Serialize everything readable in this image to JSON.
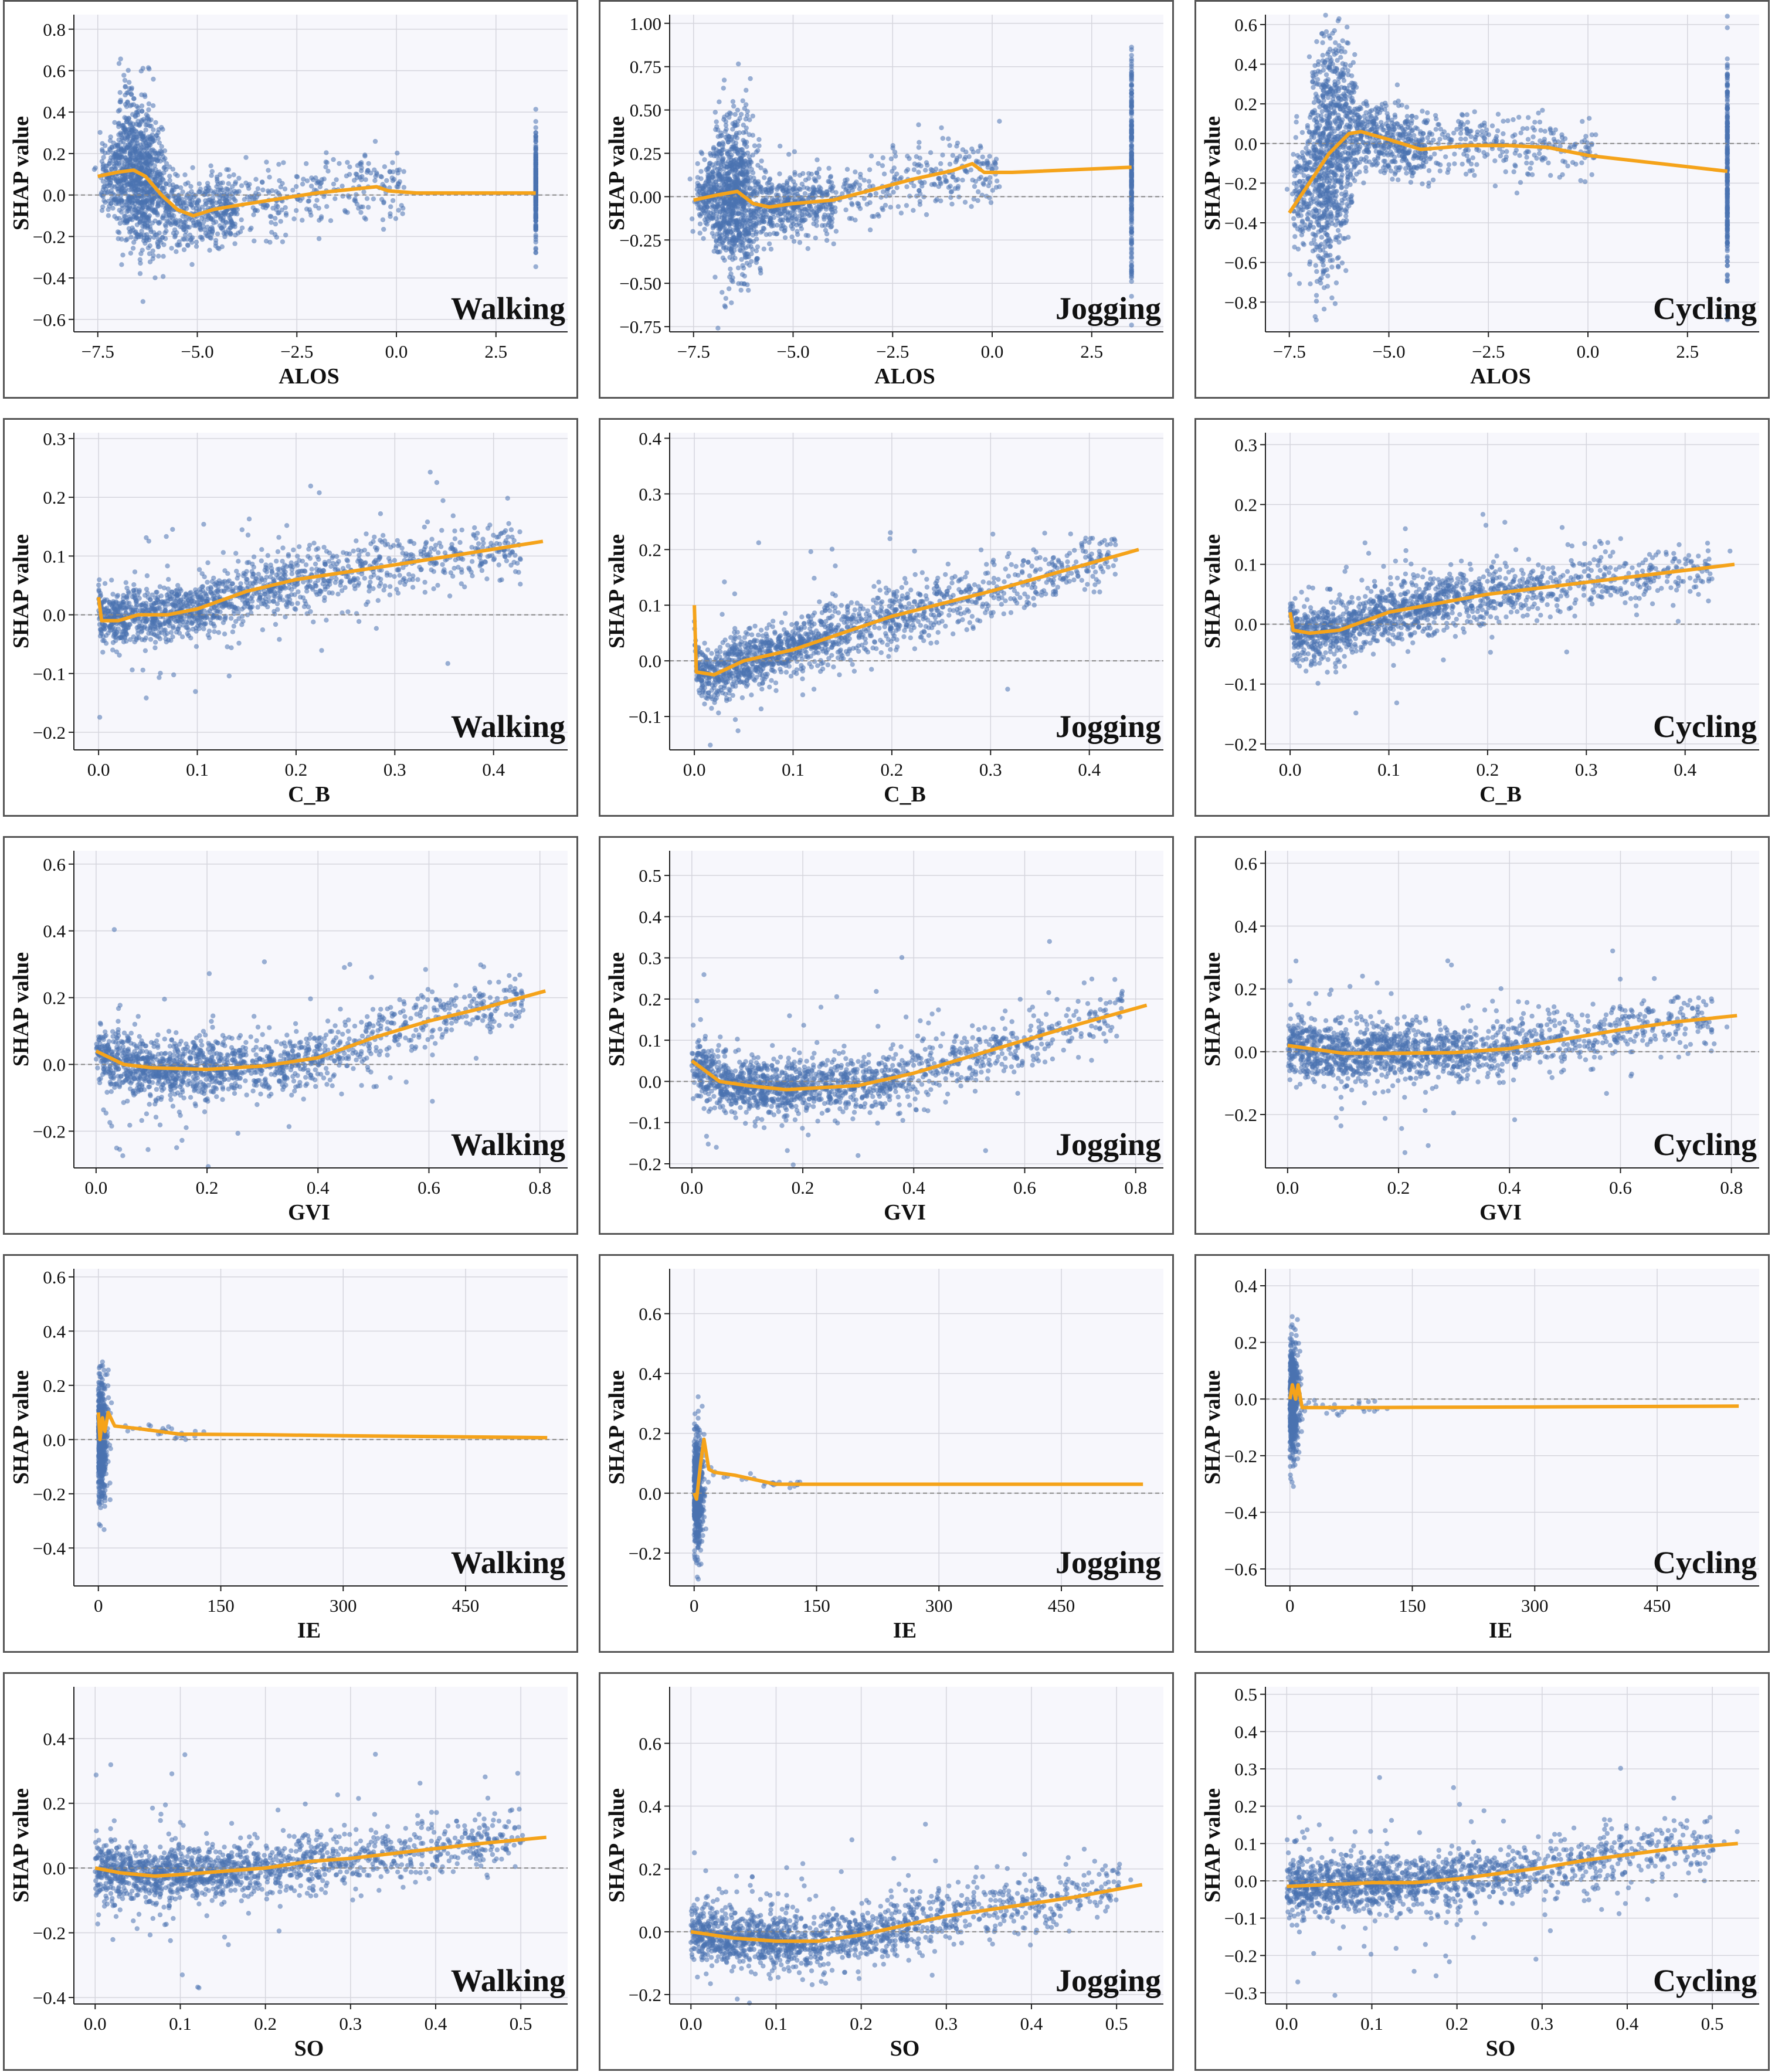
{
  "figure": {
    "colors": {
      "points": "#4b72b0",
      "lowess": "#f5a31a",
      "plot_bg": "#f7f7fc",
      "grid": "#d5d5dd",
      "zero_line": "#888888"
    }
  },
  "chart_data": [
    {
      "type": "scatter",
      "feature": "ALOS",
      "activity": "Walking",
      "xlabel": "ALOS",
      "ylabel": "SHAP value",
      "xlim": [
        -8.1,
        4.3
      ],
      "ylim": [
        -0.66,
        0.87
      ],
      "xticks": [
        -7.5,
        -5.0,
        -2.5,
        0.0,
        2.5
      ],
      "xtick_labels": [
        "−7.5",
        "−5.0",
        "−2.5",
        "0.0",
        "2.5"
      ],
      "yticks": [
        -0.6,
        -0.4,
        -0.2,
        0.0,
        0.2,
        0.4,
        0.6,
        0.8
      ],
      "ytick_labels": [
        "−0.6",
        "−0.4",
        "−0.2",
        "0.0",
        "0.2",
        "0.4",
        "0.6",
        "0.8"
      ],
      "lowess": [
        [
          -7.5,
          0.09
        ],
        [
          -7.0,
          0.11
        ],
        [
          -6.6,
          0.12
        ],
        [
          -6.3,
          0.09
        ],
        [
          -5.9,
          0.0
        ],
        [
          -5.5,
          -0.07
        ],
        [
          -5.1,
          -0.1
        ],
        [
          -4.6,
          -0.07
        ],
        [
          -4.0,
          -0.05
        ],
        [
          -3.0,
          -0.02
        ],
        [
          -2.0,
          0.01
        ],
        [
          -1.0,
          0.03
        ],
        [
          -0.5,
          0.04
        ],
        [
          -0.2,
          0.02
        ],
        [
          0.5,
          0.01
        ],
        [
          3.5,
          0.01
        ]
      ]
    },
    {
      "type": "scatter",
      "feature": "ALOS",
      "activity": "Jogging",
      "xlabel": "ALOS",
      "ylabel": "SHAP value",
      "xlim": [
        -8.1,
        4.3
      ],
      "ylim": [
        -0.78,
        1.05
      ],
      "xticks": [
        -7.5,
        -5.0,
        -2.5,
        0.0,
        2.5
      ],
      "xtick_labels": [
        "−7.5",
        "−5.0",
        "−2.5",
        "0.0",
        "2.5"
      ],
      "yticks": [
        -0.75,
        -0.5,
        -0.25,
        0.0,
        0.25,
        0.5,
        0.75,
        1.0
      ],
      "ytick_labels": [
        "−0.75",
        "−0.50",
        "−0.25",
        "0.00",
        "0.25",
        "0.50",
        "0.75",
        "1.00"
      ],
      "lowess": [
        [
          -7.5,
          -0.02
        ],
        [
          -6.9,
          0.01
        ],
        [
          -6.4,
          0.03
        ],
        [
          -6.0,
          -0.04
        ],
        [
          -5.6,
          -0.06
        ],
        [
          -5.0,
          -0.04
        ],
        [
          -4.0,
          -0.02
        ],
        [
          -3.0,
          0.04
        ],
        [
          -2.0,
          0.1
        ],
        [
          -1.0,
          0.15
        ],
        [
          -0.5,
          0.19
        ],
        [
          -0.2,
          0.14
        ],
        [
          0.5,
          0.14
        ],
        [
          3.5,
          0.17
        ]
      ]
    },
    {
      "type": "scatter",
      "feature": "ALOS",
      "activity": "Cycling",
      "xlabel": "ALOS",
      "ylabel": "SHAP value",
      "xlim": [
        -8.1,
        4.3
      ],
      "ylim": [
        -0.95,
        0.65
      ],
      "xticks": [
        -7.5,
        -5.0,
        -2.5,
        0.0,
        2.5
      ],
      "xtick_labels": [
        "−7.5",
        "−5.0",
        "−2.5",
        "0.0",
        "2.5"
      ],
      "yticks": [
        -0.8,
        -0.6,
        -0.4,
        -0.2,
        0.0,
        0.2,
        0.4,
        0.6
      ],
      "ytick_labels": [
        "−0.8",
        "−0.6",
        "−0.4",
        "−0.2",
        "0.0",
        "0.2",
        "0.4",
        "0.6"
      ],
      "lowess": [
        [
          -7.5,
          -0.35
        ],
        [
          -7.0,
          -0.2
        ],
        [
          -6.5,
          -0.05
        ],
        [
          -6.0,
          0.05
        ],
        [
          -5.7,
          0.06
        ],
        [
          -5.0,
          0.02
        ],
        [
          -4.2,
          -0.03
        ],
        [
          -3.0,
          -0.01
        ],
        [
          -2.0,
          -0.01
        ],
        [
          -1.0,
          -0.02
        ],
        [
          0.0,
          -0.06
        ],
        [
          3.5,
          -0.14
        ]
      ]
    },
    {
      "type": "scatter",
      "feature": "C_B",
      "activity": "Walking",
      "xlabel": "C_B",
      "ylabel": "SHAP value",
      "xlim": [
        -0.025,
        0.475
      ],
      "ylim": [
        -0.23,
        0.31
      ],
      "xticks": [
        0.0,
        0.1,
        0.2,
        0.3,
        0.4
      ],
      "xtick_labels": [
        "0.0",
        "0.1",
        "0.2",
        "0.3",
        "0.4"
      ],
      "yticks": [
        -0.2,
        -0.1,
        0.0,
        0.1,
        0.2,
        0.3
      ],
      "ytick_labels": [
        "−0.2",
        "−0.1",
        "0.0",
        "0.1",
        "0.2",
        "0.3"
      ],
      "lowess": [
        [
          0.0,
          0.03
        ],
        [
          0.003,
          -0.01
        ],
        [
          0.02,
          -0.01
        ],
        [
          0.04,
          0.0
        ],
        [
          0.07,
          0.0
        ],
        [
          0.1,
          0.01
        ],
        [
          0.15,
          0.04
        ],
        [
          0.2,
          0.06
        ],
        [
          0.3,
          0.085
        ],
        [
          0.45,
          0.125
        ]
      ]
    },
    {
      "type": "scatter",
      "feature": "C_B",
      "activity": "Jogging",
      "xlabel": "C_B",
      "ylabel": "SHAP value",
      "xlim": [
        -0.025,
        0.475
      ],
      "ylim": [
        -0.16,
        0.41
      ],
      "xticks": [
        0.0,
        0.1,
        0.2,
        0.3,
        0.4
      ],
      "xtick_labels": [
        "0.0",
        "0.1",
        "0.2",
        "0.3",
        "0.4"
      ],
      "yticks": [
        -0.1,
        0.0,
        0.1,
        0.2,
        0.3,
        0.4
      ],
      "ytick_labels": [
        "−0.1",
        "0.0",
        "0.1",
        "0.2",
        "0.3",
        "0.4"
      ],
      "lowess": [
        [
          0.0,
          0.1
        ],
        [
          0.002,
          -0.02
        ],
        [
          0.02,
          -0.025
        ],
        [
          0.05,
          0.0
        ],
        [
          0.1,
          0.02
        ],
        [
          0.15,
          0.05
        ],
        [
          0.2,
          0.08
        ],
        [
          0.3,
          0.125
        ],
        [
          0.45,
          0.2
        ]
      ]
    },
    {
      "type": "scatter",
      "feature": "C_B",
      "activity": "Cycling",
      "xlabel": "C_B",
      "ylabel": "SHAP value",
      "xlim": [
        -0.025,
        0.475
      ],
      "ylim": [
        -0.21,
        0.32
      ],
      "xticks": [
        0.0,
        0.1,
        0.2,
        0.3,
        0.4
      ],
      "xtick_labels": [
        "0.0",
        "0.1",
        "0.2",
        "0.3",
        "0.4"
      ],
      "yticks": [
        -0.2,
        -0.1,
        0.0,
        0.1,
        0.2,
        0.3
      ],
      "ytick_labels": [
        "−0.2",
        "−0.1",
        "0.0",
        "0.1",
        "0.2",
        "0.3"
      ],
      "lowess": [
        [
          0.0,
          0.02
        ],
        [
          0.003,
          -0.01
        ],
        [
          0.02,
          -0.015
        ],
        [
          0.05,
          -0.01
        ],
        [
          0.1,
          0.02
        ],
        [
          0.15,
          0.035
        ],
        [
          0.2,
          0.05
        ],
        [
          0.3,
          0.07
        ],
        [
          0.45,
          0.1
        ]
      ]
    },
    {
      "type": "scatter",
      "feature": "GVI",
      "activity": "Walking",
      "xlabel": "GVI",
      "ylabel": "SHAP value",
      "xlim": [
        -0.04,
        0.85
      ],
      "ylim": [
        -0.31,
        0.64
      ],
      "xticks": [
        0.0,
        0.2,
        0.4,
        0.6,
        0.8
      ],
      "xtick_labels": [
        "0.0",
        "0.2",
        "0.4",
        "0.6",
        "0.8"
      ],
      "yticks": [
        -0.2,
        0.0,
        0.2,
        0.4,
        0.6
      ],
      "ytick_labels": [
        "−0.2",
        "0.0",
        "0.2",
        "0.4",
        "0.6"
      ],
      "lowess": [
        [
          0.0,
          0.04
        ],
        [
          0.05,
          0.0
        ],
        [
          0.1,
          -0.01
        ],
        [
          0.2,
          -0.015
        ],
        [
          0.3,
          -0.005
        ],
        [
          0.4,
          0.02
        ],
        [
          0.5,
          0.08
        ],
        [
          0.6,
          0.13
        ],
        [
          0.7,
          0.17
        ],
        [
          0.81,
          0.22
        ]
      ]
    },
    {
      "type": "scatter",
      "feature": "GVI",
      "activity": "Jogging",
      "xlabel": "GVI",
      "ylabel": "SHAP value",
      "xlim": [
        -0.04,
        0.85
      ],
      "ylim": [
        -0.21,
        0.56
      ],
      "xticks": [
        0.0,
        0.2,
        0.4,
        0.6,
        0.8
      ],
      "xtick_labels": [
        "0.0",
        "0.2",
        "0.4",
        "0.6",
        "0.8"
      ],
      "yticks": [
        -0.2,
        -0.1,
        0.0,
        0.1,
        0.2,
        0.3,
        0.4,
        0.5
      ],
      "ytick_labels": [
        "−0.2",
        "−0.1",
        "0.0",
        "0.1",
        "0.2",
        "0.3",
        "0.4",
        "0.5"
      ],
      "lowess": [
        [
          0.0,
          0.05
        ],
        [
          0.05,
          0.0
        ],
        [
          0.1,
          -0.01
        ],
        [
          0.17,
          -0.02
        ],
        [
          0.3,
          -0.01
        ],
        [
          0.4,
          0.02
        ],
        [
          0.5,
          0.06
        ],
        [
          0.6,
          0.1
        ],
        [
          0.7,
          0.14
        ],
        [
          0.82,
          0.185
        ]
      ]
    },
    {
      "type": "scatter",
      "feature": "GVI",
      "activity": "Cycling",
      "xlabel": "GVI",
      "ylabel": "SHAP value",
      "xlim": [
        -0.04,
        0.85
      ],
      "ylim": [
        -0.37,
        0.64
      ],
      "xticks": [
        0.0,
        0.2,
        0.4,
        0.6,
        0.8
      ],
      "xtick_labels": [
        "0.0",
        "0.2",
        "0.4",
        "0.6",
        "0.8"
      ],
      "yticks": [
        -0.2,
        0.0,
        0.2,
        0.4,
        0.6
      ],
      "ytick_labels": [
        "−0.2",
        "0.0",
        "0.2",
        "0.4",
        "0.6"
      ],
      "lowess": [
        [
          0.0,
          0.02
        ],
        [
          0.1,
          -0.005
        ],
        [
          0.2,
          -0.005
        ],
        [
          0.3,
          -0.003
        ],
        [
          0.4,
          0.01
        ],
        [
          0.5,
          0.04
        ],
        [
          0.6,
          0.07
        ],
        [
          0.7,
          0.095
        ],
        [
          0.81,
          0.115
        ]
      ]
    },
    {
      "type": "scatter",
      "feature": "IE",
      "activity": "Walking",
      "xlabel": "IE",
      "ylabel": "SHAP value",
      "xlim": [
        -30,
        575
      ],
      "ylim": [
        -0.54,
        0.63
      ],
      "xticks": [
        0,
        150,
        300,
        450
      ],
      "xtick_labels": [
        "0",
        "150",
        "300",
        "450"
      ],
      "yticks": [
        -0.4,
        -0.2,
        0.0,
        0.2,
        0.4,
        0.6
      ],
      "ytick_labels": [
        "−0.4",
        "−0.2",
        "0.0",
        "0.2",
        "0.4",
        "0.6"
      ],
      "lowess": [
        [
          0,
          0.1
        ],
        [
          2,
          0.0
        ],
        [
          5,
          0.08
        ],
        [
          8,
          0.03
        ],
        [
          12,
          0.1
        ],
        [
          20,
          0.05
        ],
        [
          50,
          0.04
        ],
        [
          100,
          0.02
        ],
        [
          200,
          0.018
        ],
        [
          300,
          0.014
        ],
        [
          450,
          0.01
        ],
        [
          550,
          0.007
        ]
      ]
    },
    {
      "type": "scatter",
      "feature": "IE",
      "activity": "Jogging",
      "xlabel": "IE",
      "ylabel": "SHAP value",
      "xlim": [
        -30,
        575
      ],
      "ylim": [
        -0.31,
        0.75
      ],
      "xticks": [
        0,
        150,
        300,
        450
      ],
      "xtick_labels": [
        "0",
        "150",
        "300",
        "450"
      ],
      "yticks": [
        -0.2,
        0.0,
        0.2,
        0.4,
        0.6
      ],
      "ytick_labels": [
        "−0.2",
        "0.0",
        "0.2",
        "0.4",
        "0.6"
      ],
      "lowess": [
        [
          0,
          0.0
        ],
        [
          3,
          -0.02
        ],
        [
          8,
          0.1
        ],
        [
          12,
          0.18
        ],
        [
          18,
          0.08
        ],
        [
          25,
          0.07
        ],
        [
          50,
          0.06
        ],
        [
          100,
          0.03
        ],
        [
          200,
          0.03
        ],
        [
          400,
          0.03
        ],
        [
          550,
          0.03
        ]
      ]
    },
    {
      "type": "scatter",
      "feature": "IE",
      "activity": "Cycling",
      "xlabel": "IE",
      "ylabel": "SHAP value",
      "xlim": [
        -30,
        575
      ],
      "ylim": [
        -0.66,
        0.46
      ],
      "xticks": [
        0,
        150,
        300,
        450
      ],
      "xtick_labels": [
        "0",
        "150",
        "300",
        "450"
      ],
      "yticks": [
        -0.6,
        -0.4,
        -0.2,
        0.0,
        0.2,
        0.4
      ],
      "ytick_labels": [
        "−0.6",
        "−0.4",
        "−0.2",
        "0.0",
        "0.2",
        "0.4"
      ],
      "lowess": [
        [
          0,
          0.0
        ],
        [
          3,
          0.05
        ],
        [
          7,
          0.0
        ],
        [
          10,
          0.05
        ],
        [
          15,
          -0.03
        ],
        [
          30,
          -0.03
        ],
        [
          100,
          -0.03
        ],
        [
          300,
          -0.028
        ],
        [
          550,
          -0.025
        ]
      ]
    },
    {
      "type": "scatter",
      "feature": "SO",
      "activity": "Walking",
      "xlabel": "SO",
      "ylabel": "SHAP value",
      "xlim": [
        -0.025,
        0.555
      ],
      "ylim": [
        -0.42,
        0.56
      ],
      "xticks": [
        0.0,
        0.1,
        0.2,
        0.3,
        0.4,
        0.5
      ],
      "xtick_labels": [
        "0.0",
        "0.1",
        "0.2",
        "0.3",
        "0.4",
        "0.5"
      ],
      "yticks": [
        -0.4,
        -0.2,
        0.0,
        0.2,
        0.4
      ],
      "ytick_labels": [
        "−0.4",
        "−0.2",
        "0.0",
        "0.2",
        "0.4"
      ],
      "lowess": [
        [
          0.0,
          0.0
        ],
        [
          0.03,
          -0.015
        ],
        [
          0.07,
          -0.025
        ],
        [
          0.1,
          -0.02
        ],
        [
          0.15,
          -0.01
        ],
        [
          0.2,
          0.0
        ],
        [
          0.25,
          0.02
        ],
        [
          0.3,
          0.03
        ],
        [
          0.35,
          0.045
        ],
        [
          0.4,
          0.06
        ],
        [
          0.45,
          0.075
        ],
        [
          0.53,
          0.095
        ]
      ]
    },
    {
      "type": "scatter",
      "feature": "SO",
      "activity": "Jogging",
      "xlabel": "SO",
      "ylabel": "SHAP value",
      "xlim": [
        -0.025,
        0.555
      ],
      "ylim": [
        -0.23,
        0.78
      ],
      "xticks": [
        0.0,
        0.1,
        0.2,
        0.3,
        0.4,
        0.5
      ],
      "xtick_labels": [
        "0.0",
        "0.1",
        "0.2",
        "0.3",
        "0.4",
        "0.5"
      ],
      "yticks": [
        -0.2,
        0.0,
        0.2,
        0.4,
        0.6
      ],
      "ytick_labels": [
        "−0.2",
        "0.0",
        "0.2",
        "0.4",
        "0.6"
      ],
      "lowess": [
        [
          0.0,
          0.0
        ],
        [
          0.05,
          -0.02
        ],
        [
          0.1,
          -0.03
        ],
        [
          0.15,
          -0.03
        ],
        [
          0.2,
          -0.01
        ],
        [
          0.25,
          0.02
        ],
        [
          0.3,
          0.05
        ],
        [
          0.35,
          0.07
        ],
        [
          0.4,
          0.09
        ],
        [
          0.45,
          0.11
        ],
        [
          0.53,
          0.15
        ]
      ]
    },
    {
      "type": "scatter",
      "feature": "SO",
      "activity": "Cycling",
      "xlabel": "SO",
      "ylabel": "SHAP value",
      "xlim": [
        -0.025,
        0.555
      ],
      "ylim": [
        -0.33,
        0.52
      ],
      "xticks": [
        0.0,
        0.1,
        0.2,
        0.3,
        0.4,
        0.5
      ],
      "xtick_labels": [
        "0.0",
        "0.1",
        "0.2",
        "0.3",
        "0.4",
        "0.5"
      ],
      "yticks": [
        -0.3,
        -0.2,
        -0.1,
        0.0,
        0.1,
        0.2,
        0.3,
        0.4,
        0.5
      ],
      "ytick_labels": [
        "−0.3",
        "−0.2",
        "−0.1",
        "0.0",
        "0.1",
        "0.2",
        "0.3",
        "0.4",
        "0.5"
      ],
      "lowess": [
        [
          0.0,
          -0.015
        ],
        [
          0.05,
          -0.01
        ],
        [
          0.1,
          -0.005
        ],
        [
          0.15,
          -0.005
        ],
        [
          0.2,
          0.005
        ],
        [
          0.25,
          0.02
        ],
        [
          0.3,
          0.035
        ],
        [
          0.35,
          0.055
        ],
        [
          0.4,
          0.07
        ],
        [
          0.45,
          0.085
        ],
        [
          0.53,
          0.1
        ]
      ]
    }
  ]
}
